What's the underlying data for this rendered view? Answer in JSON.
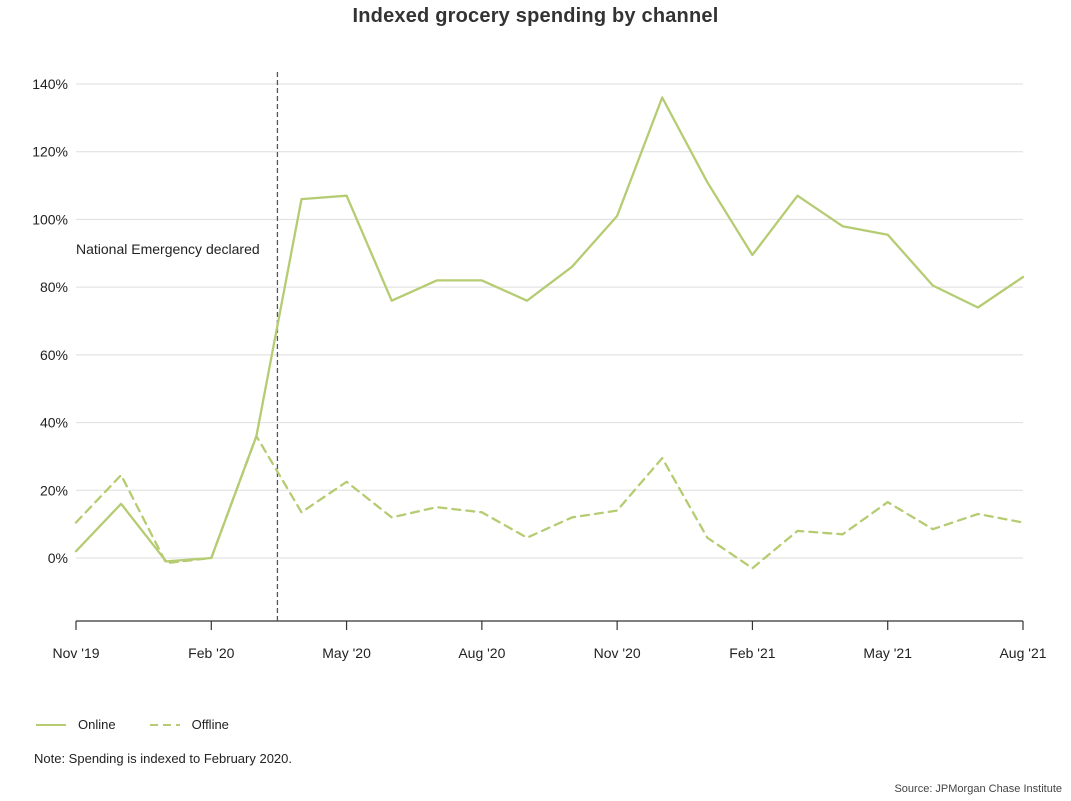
{
  "chart_data": {
    "type": "line",
    "title": "Indexed grocery spending by channel",
    "x": [
      "2019-11",
      "2019-12",
      "2020-01",
      "2020-02",
      "2020-03",
      "2020-04",
      "2020-05",
      "2020-06",
      "2020-07",
      "2020-08",
      "2020-09",
      "2020-10",
      "2020-11",
      "2020-12",
      "2021-01",
      "2021-02",
      "2021-03",
      "2021-04",
      "2021-05",
      "2021-06",
      "2021-07",
      "2021-08"
    ],
    "x_tick_labels": [
      "Nov '19",
      "Feb '20",
      "May '20",
      "Aug '20",
      "Nov '20",
      "Feb '21",
      "May '21",
      "Aug '21"
    ],
    "x_tick_positions": [
      "2019-11",
      "2020-02",
      "2020-05",
      "2020-08",
      "2020-11",
      "2021-02",
      "2021-05",
      "2021-08"
    ],
    "ylim": [
      -18,
      140
    ],
    "y_ticks": [
      0,
      20,
      40,
      60,
      80,
      100,
      120,
      140
    ],
    "y_tick_labels": [
      "0%",
      "20%",
      "40%",
      "60%",
      "80%",
      "100%",
      "120%",
      "140%"
    ],
    "grid": "horizontal",
    "series": [
      {
        "name": "Online",
        "style": "solid",
        "color": "#b5cc72",
        "values": [
          2,
          16,
          -1,
          0,
          36,
          106,
          107,
          76,
          82,
          82,
          76,
          86,
          101,
          136,
          111,
          89.5,
          107,
          98,
          95.5,
          80.5,
          74,
          83
        ]
      },
      {
        "name": "Offline",
        "style": "dashed",
        "color": "#b5cc72",
        "values": [
          10.5,
          24.5,
          -1.5,
          0,
          36,
          13.5,
          22.5,
          12,
          15,
          13.5,
          6,
          12,
          14,
          29.5,
          6,
          -3,
          8,
          7,
          16.5,
          8.5,
          13,
          10.5
        ]
      }
    ],
    "annotations": [
      {
        "type": "vline",
        "x": "2020-03-15",
        "label": "National Emergency declared"
      }
    ],
    "legend_position": "bottom-left",
    "note": "Note: Spending is indexed to February 2020.",
    "source": "Source: JPMorgan Chase Institute"
  },
  "colors": {
    "series": "#b5cc72",
    "grid": "#dedede",
    "axis": "#333333",
    "annotation_line": "#555555"
  }
}
